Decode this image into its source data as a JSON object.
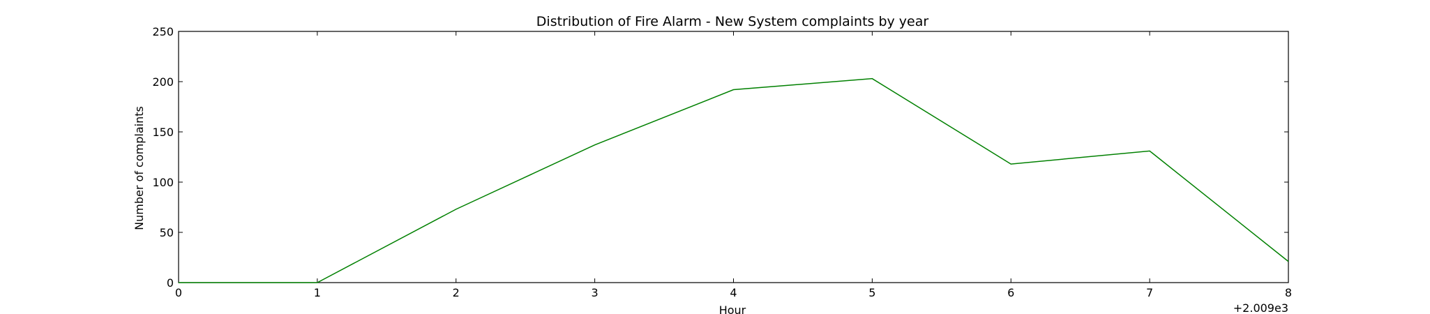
{
  "chart_data": {
    "type": "line",
    "title": "Distribution of  Fire Alarm - New System complaints by year",
    "xlabel": "Hour",
    "ylabel": "Number of complaints",
    "x_offset_label": "+2.009e3",
    "xlim": [
      0,
      8
    ],
    "ylim": [
      0,
      250
    ],
    "x_ticks": [
      0,
      1,
      2,
      3,
      4,
      5,
      6,
      7,
      8
    ],
    "x_tick_labels": [
      "0",
      "1",
      "2",
      "3",
      "4",
      "5",
      "6",
      "7",
      "8"
    ],
    "y_ticks": [
      0,
      50,
      100,
      150,
      200,
      250
    ],
    "y_tick_labels": [
      "0",
      "50",
      "100",
      "150",
      "200",
      "250"
    ],
    "grid": false,
    "line_color": "#008000",
    "series": [
      {
        "x": [
          0,
          1,
          2,
          3,
          4,
          5,
          6,
          7,
          8
        ],
        "y": [
          0,
          0,
          73,
          137,
          192,
          203,
          118,
          131,
          21
        ]
      }
    ]
  }
}
